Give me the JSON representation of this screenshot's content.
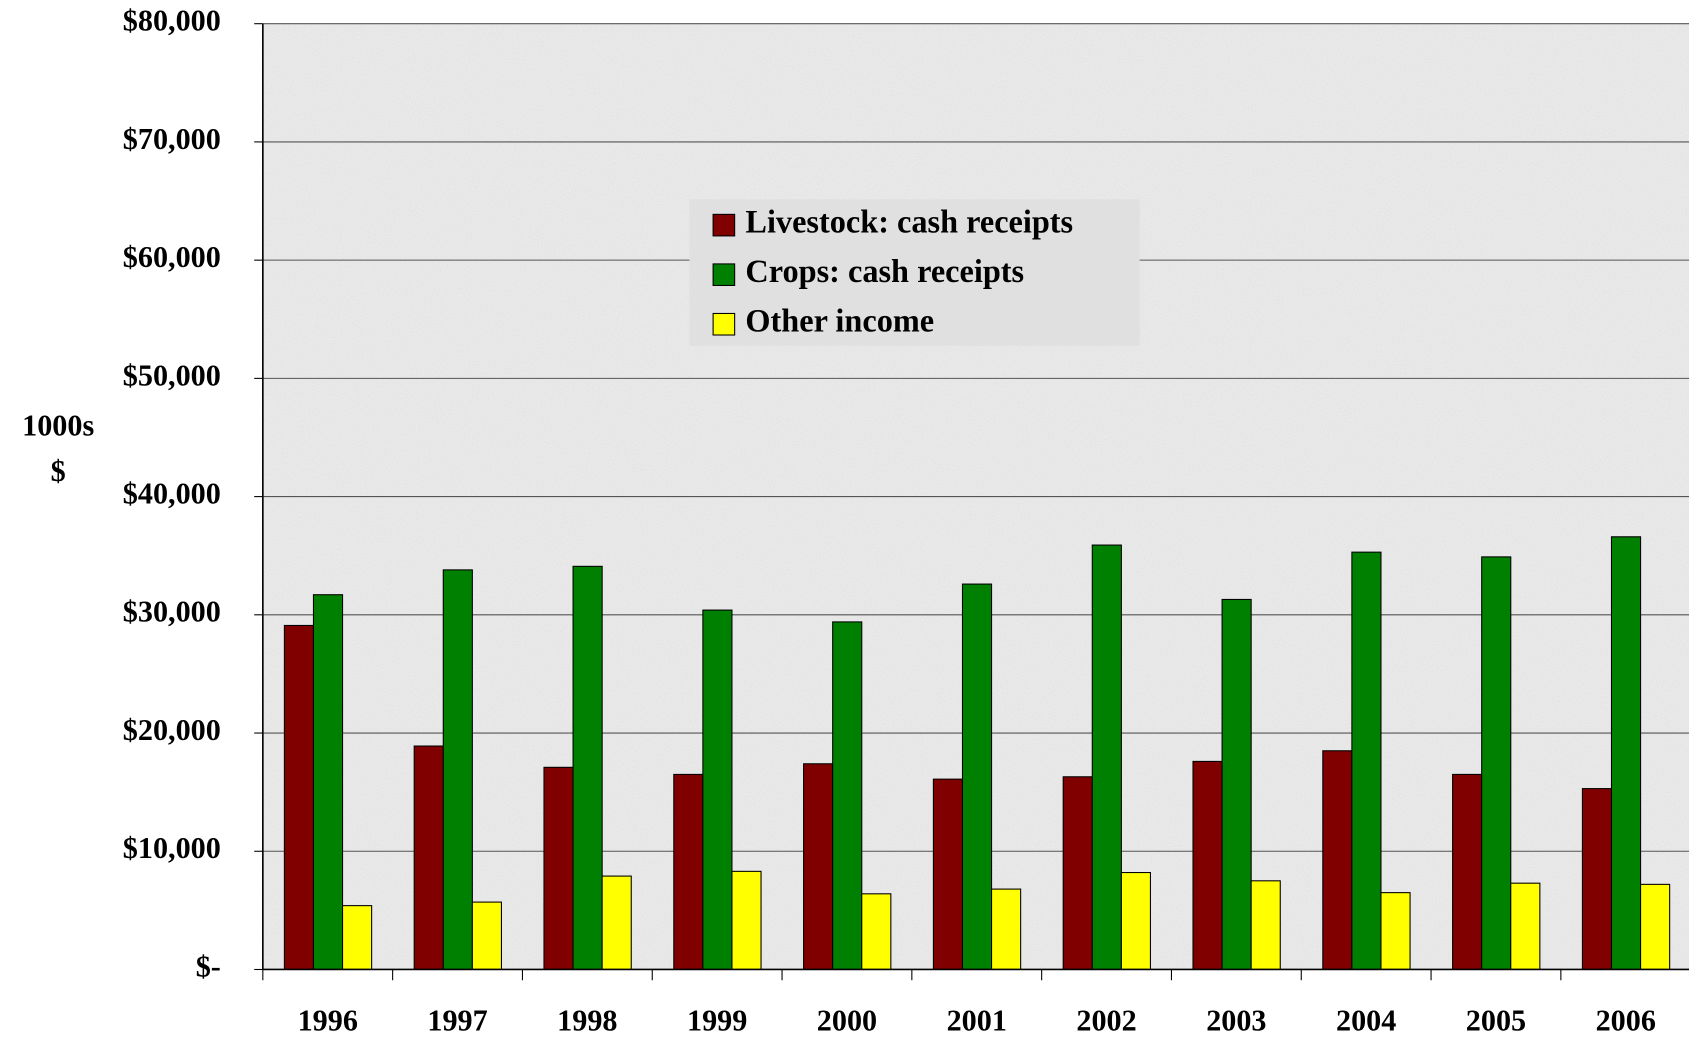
{
  "chart_data": {
    "type": "bar",
    "y_label": [
      "1000s",
      "$"
    ],
    "categories": [
      "1996",
      "1997",
      "1998",
      "1999",
      "2000",
      "2001",
      "2002",
      "2003",
      "2004",
      "2005",
      "2006"
    ],
    "series": [
      {
        "name": "Livestock: cash receipts",
        "color": "#800000",
        "values": [
          29100,
          18900,
          17100,
          16500,
          17400,
          16100,
          16300,
          17600,
          18500,
          16500,
          15300
        ]
      },
      {
        "name": "Crops: cash receipts",
        "color": "#008000",
        "values": [
          31700,
          33800,
          34100,
          30400,
          29400,
          32600,
          35900,
          31300,
          35300,
          34900,
          36600
        ]
      },
      {
        "name": "Other income",
        "color": "#ffff00",
        "values": [
          5400,
          5700,
          7900,
          8300,
          6400,
          6800,
          8200,
          7500,
          6500,
          7300,
          7200
        ]
      }
    ],
    "ylim": [
      0,
      80000
    ],
    "yticks": [
      {
        "value": 0,
        "label": "$-"
      },
      {
        "value": 10000,
        "label": "$10,000"
      },
      {
        "value": 20000,
        "label": "$20,000"
      },
      {
        "value": 30000,
        "label": "$30,000"
      },
      {
        "value": 40000,
        "label": "$40,000"
      },
      {
        "value": 50000,
        "label": "$50,000"
      },
      {
        "value": 60000,
        "label": "$60,000"
      },
      {
        "value": 70000,
        "label": "$70,000"
      },
      {
        "value": 80000,
        "label": "$80,000"
      }
    ],
    "grid": true,
    "legend": "top-center"
  }
}
